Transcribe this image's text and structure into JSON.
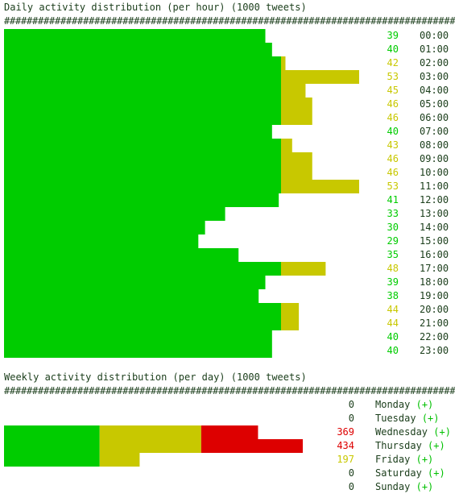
{
  "colors": {
    "green": "#00cc00",
    "yellow": "#c8c800",
    "red": "#dd0000",
    "text": "#1a3d1a"
  },
  "hourly": {
    "title": "Daily activity distribution (per hour) (1000 tweets)",
    "separator": "################################################################################"
  },
  "weekly": {
    "title": "Weekly activity distribution (per day) (1000 tweets)",
    "separator": "################################################################################",
    "plus": "(+)"
  },
  "chart_data": [
    {
      "type": "bar",
      "orientation": "horizontal",
      "title": "Daily activity distribution (per hour) (1000 tweets)",
      "categories": [
        "00:00",
        "01:00",
        "02:00",
        "03:00",
        "04:00",
        "05:00",
        "06:00",
        "07:00",
        "08:00",
        "09:00",
        "10:00",
        "11:00",
        "12:00",
        "13:00",
        "14:00",
        "15:00",
        "16:00",
        "17:00",
        "18:00",
        "19:00",
        "20:00",
        "21:00",
        "22:00",
        "23:00"
      ],
      "values": [
        39,
        40,
        42,
        53,
        45,
        46,
        46,
        40,
        43,
        46,
        46,
        53,
        41,
        33,
        30,
        29,
        35,
        48,
        39,
        38,
        44,
        44,
        40,
        40
      ],
      "xlim": [
        0,
        53
      ]
    },
    {
      "type": "bar",
      "orientation": "horizontal",
      "title": "Weekly activity distribution (per day) (1000 tweets)",
      "categories": [
        "Monday",
        "Tuesday",
        "Wednesday",
        "Thursday",
        "Friday",
        "Saturday",
        "Sunday"
      ],
      "values": [
        0,
        0,
        369,
        434,
        197,
        0,
        0
      ],
      "xlim": [
        0,
        434
      ]
    }
  ]
}
